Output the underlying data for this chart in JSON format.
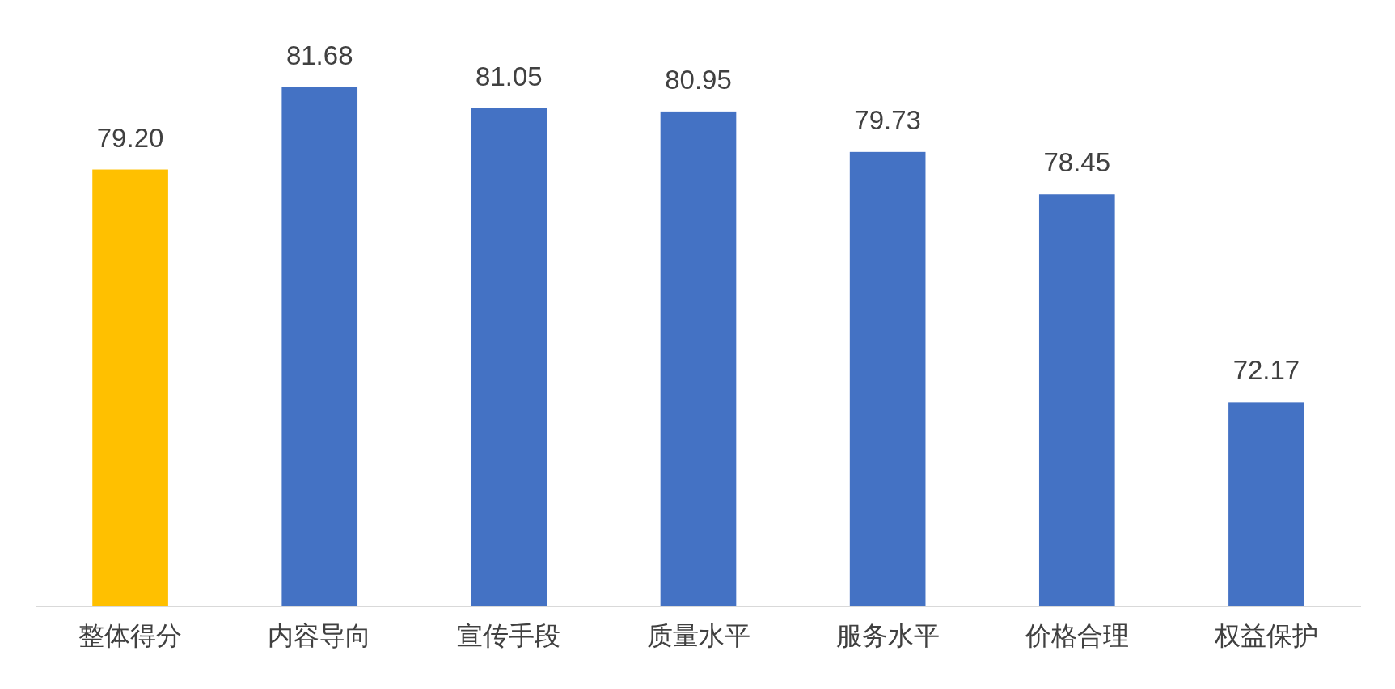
{
  "chart_data": {
    "type": "bar",
    "categories": [
      "整体得分",
      "内容导向",
      "宣传手段",
      "质量水平",
      "服务水平",
      "价格合理",
      "权益保护"
    ],
    "values": [
      79.2,
      81.68,
      81.05,
      80.95,
      79.73,
      78.45,
      72.17
    ],
    "colors": [
      "#ffc000",
      "#4472c4",
      "#4472c4",
      "#4472c4",
      "#4472c4",
      "#4472c4",
      "#4472c4"
    ],
    "value_labels": [
      "79.20",
      "81.68",
      "81.05",
      "80.95",
      "79.73",
      "78.45",
      "72.17"
    ],
    "ylim": [
      66,
      81.68
    ]
  }
}
